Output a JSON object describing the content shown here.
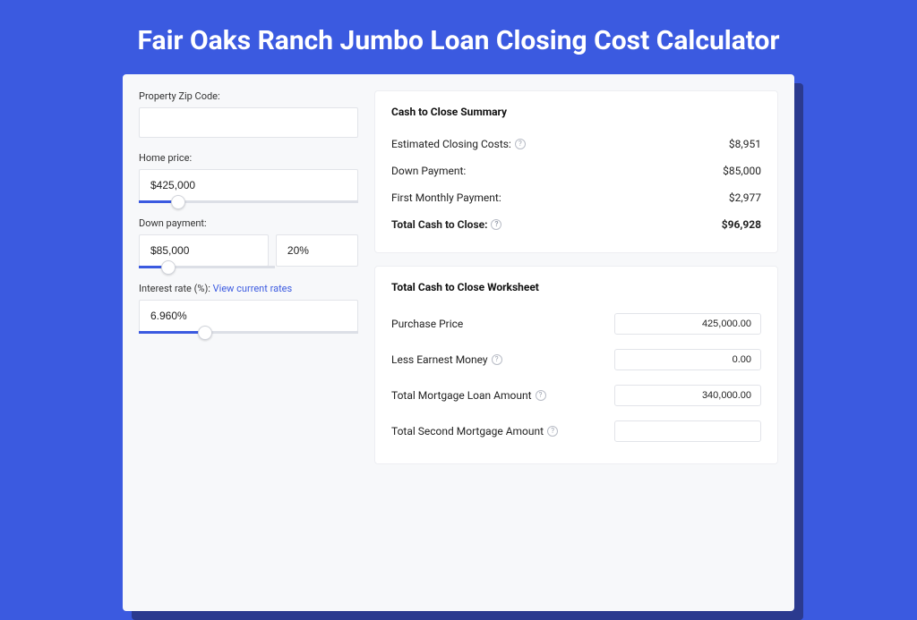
{
  "colors": {
    "page_bg": "#3b5ae0",
    "shadow": "#2b3a8f",
    "card_bg": "#f7f8fa",
    "panel_bg": "#ffffff",
    "border": "#e2e4e9",
    "text": "#222222",
    "title_text": "#ffffff",
    "link": "#3b5ae0",
    "slider_track": "#dcdfe6",
    "slider_fill": "#3b5ae0"
  },
  "title": "Fair Oaks Ranch Jumbo Loan Closing Cost Calculator",
  "inputs": {
    "zip": {
      "label": "Property Zip Code:",
      "value": ""
    },
    "home_price": {
      "label": "Home price:",
      "value": "$425,000",
      "slider_pct": 18
    },
    "down_payment": {
      "label": "Down payment:",
      "value": "$85,000",
      "pct_value": "20%",
      "slider_pct": 22
    },
    "interest_rate": {
      "label": "Interest rate (%):",
      "link_text": "View current rates",
      "value": "6.960%",
      "slider_pct": 30
    }
  },
  "summary": {
    "title": "Cash to Close Summary",
    "rows": [
      {
        "label": "Estimated Closing Costs:",
        "help": true,
        "value": "$8,951",
        "bold": false
      },
      {
        "label": "Down Payment:",
        "help": false,
        "value": "$85,000",
        "bold": false
      },
      {
        "label": "First Monthly Payment:",
        "help": false,
        "value": "$2,977",
        "bold": false
      },
      {
        "label": "Total Cash to Close:",
        "help": true,
        "value": "$96,928",
        "bold": true
      }
    ]
  },
  "worksheet": {
    "title": "Total Cash to Close Worksheet",
    "rows": [
      {
        "label": "Purchase Price",
        "help": false,
        "value": "425,000.00"
      },
      {
        "label": "Less Earnest Money",
        "help": true,
        "value": "0.00"
      },
      {
        "label": "Total Mortgage Loan Amount",
        "help": true,
        "value": "340,000.00"
      },
      {
        "label": "Total Second Mortgage Amount",
        "help": true,
        "value": ""
      }
    ]
  }
}
